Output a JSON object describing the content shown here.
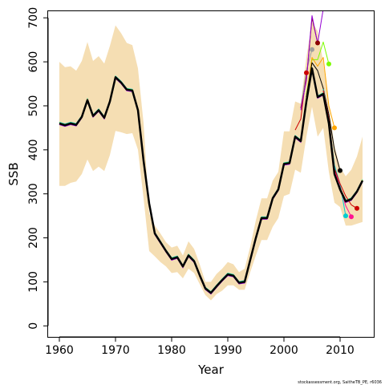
{
  "chart_data": {
    "type": "line",
    "xlabel": "Year",
    "ylabel": "SSB",
    "xlim": [
      1958,
      2016
    ],
    "ylim": [
      -25,
      715
    ],
    "x_ticks": [
      1960,
      1970,
      1980,
      1990,
      2000,
      2010
    ],
    "y_ticks": [
      0,
      100,
      200,
      300,
      400,
      500,
      600,
      700
    ],
    "grid": false,
    "credit": "stockassessment.org, SaitheTB_PE, r6036",
    "colors": {
      "band": "#F5DEB3",
      "base": "#000000",
      "peel_colors": [
        "#CC0000",
        "#FF1493",
        "#00CED1",
        "#000000",
        "#FFA500",
        "#7CFC00",
        "#9400D3",
        "#8B0000",
        "#9E9E9E"
      ]
    },
    "confidence_band": {
      "x": [
        1960,
        1961,
        1962,
        1963,
        1964,
        1965,
        1966,
        1967,
        1968,
        1969,
        1970,
        1971,
        1972,
        1973,
        1974,
        1975,
        1976,
        1977,
        1978,
        1979,
        1980,
        1981,
        1982,
        1983,
        1984,
        1985,
        1986,
        1987,
        1988,
        1989,
        1990,
        1991,
        1992,
        1993,
        1994,
        1995,
        1996,
        1997,
        1998,
        1999,
        2000,
        2001,
        2002,
        2003,
        2004,
        2005,
        2006,
        2007,
        2008,
        2009,
        2010,
        2011,
        2012,
        2013,
        2014
      ],
      "lower": [
        318,
        318,
        325,
        328,
        345,
        378,
        352,
        362,
        352,
        388,
        443,
        440,
        436,
        438,
        400,
        290,
        170,
        158,
        145,
        135,
        120,
        122,
        108,
        130,
        120,
        95,
        70,
        58,
        72,
        80,
        92,
        92,
        82,
        82,
        122,
        160,
        195,
        195,
        225,
        245,
        295,
        300,
        355,
        348,
        430,
        498,
        430,
        450,
        350,
        280,
        270,
        228,
        228,
        232,
        236
      ],
      "upper": [
        600,
        588,
        590,
        580,
        602,
        645,
        602,
        613,
        596,
        636,
        683,
        665,
        643,
        638,
        585,
        460,
        255,
        228,
        210,
        190,
        178,
        182,
        160,
        192,
        175,
        140,
        100,
        100,
        118,
        130,
        145,
        140,
        122,
        130,
        180,
        240,
        290,
        290,
        330,
        350,
        442,
        442,
        510,
        505,
        610,
        690,
        670,
        600,
        500,
        410,
        360,
        340,
        355,
        385,
        430
      ]
    },
    "series": [
      {
        "x": [
          1960,
          1961,
          1962,
          1963,
          1964,
          1965,
          1966,
          1967,
          1968,
          1969,
          1970,
          1971,
          1972,
          1973,
          1974,
          1975,
          1976,
          1977,
          1978,
          1979,
          1980,
          1981,
          1982,
          1983,
          1984,
          1985,
          1986,
          1987,
          1988,
          1989,
          1990,
          1991,
          1992,
          1993,
          1994,
          1995,
          1996,
          1997,
          1998,
          1999,
          2000,
          2001,
          2002,
          2003,
          2004,
          2005,
          2006,
          2007,
          2008,
          2009,
          2010,
          2011,
          2012,
          2013,
          2014
        ],
        "values": [
          460,
          456,
          460,
          457,
          475,
          513,
          477,
          490,
          473,
          510,
          565,
          553,
          537,
          535,
          490,
          375,
          278,
          210,
          190,
          170,
          152,
          156,
          135,
          160,
          147,
          115,
          85,
          75,
          90,
          104,
          117,
          114,
          98,
          100,
          150,
          200,
          245,
          245,
          290,
          310,
          368,
          370,
          430,
          420,
          510,
          585,
          520,
          527,
          460,
          345,
          310,
          283,
          288,
          305,
          330
        ],
        "end_point": false
      },
      {
        "x": [
          2007,
          2008,
          2009,
          2010,
          2011,
          2012,
          2013
        ],
        "values": [
          535,
          471,
          358,
          323,
          295,
          275,
          267
        ],
        "end_point": true
      },
      {
        "x": [
          2007,
          2008,
          2009,
          2010,
          2011,
          2012
        ],
        "values": [
          535,
          470,
          355,
          315,
          273,
          248
        ],
        "end_point": true
      },
      {
        "x": [
          2007,
          2008,
          2009,
          2010,
          2011
        ],
        "values": [
          538,
          468,
          365,
          322,
          250
        ],
        "end_point": true
      },
      {
        "x": [
          2004,
          2005,
          2006,
          2007,
          2008,
          2009,
          2010
        ],
        "values": [
          520,
          598,
          580,
          540,
          480,
          400,
          353
        ],
        "end_point": true
      },
      {
        "x": [
          2004,
          2005,
          2006,
          2007,
          2008,
          2009
        ],
        "values": [
          520,
          610,
          590,
          610,
          500,
          450
        ],
        "end_point": true
      },
      {
        "x": [
          2004,
          2005,
          2006,
          2007,
          2008
        ],
        "values": [
          525,
          605,
          605,
          645,
          595
        ],
        "end_point": true
      },
      {
        "x": [
          2003,
          2004,
          2005,
          2006,
          2007
        ],
        "values": [
          490,
          560,
          705,
          642,
          720
        ],
        "end_point": true
      },
      {
        "x": [
          2003,
          2004,
          2005,
          2006
        ],
        "values": [
          495,
          558,
          700,
          643
        ],
        "end_point": true
      },
      {
        "x": [
          2003,
          2004,
          2005
        ],
        "values": [
          495,
          580,
          628
        ],
        "end_point": true
      },
      {
        "x": [
          2002,
          2003,
          2004
        ],
        "values": [
          445,
          470,
          575
        ],
        "end_point": true
      }
    ]
  }
}
